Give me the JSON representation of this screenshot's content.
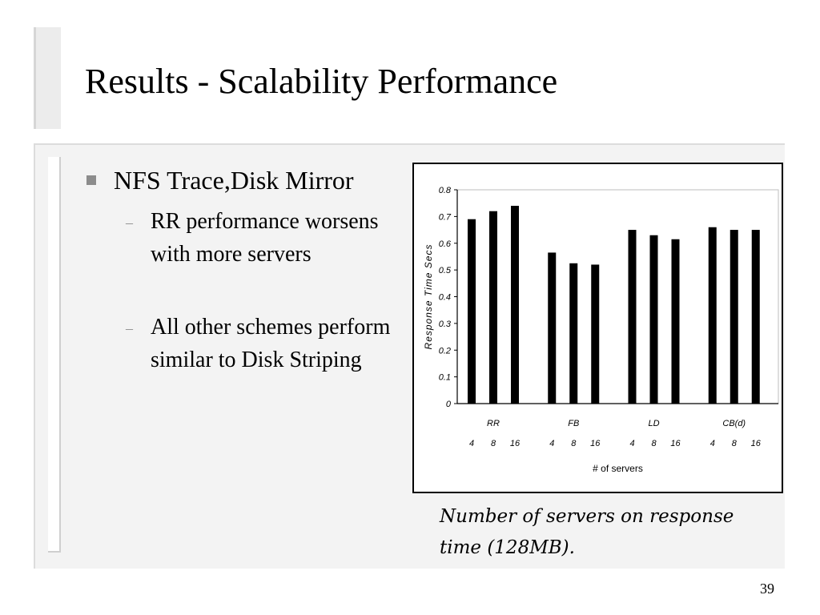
{
  "slide": {
    "title": "Results - Scalability Performance",
    "bullet": "NFS Trace,Disk Mirror",
    "sub_bullets": [
      {
        "dash": "–",
        "text": "RR performance worsens with more servers"
      },
      {
        "dash": "–",
        "text": "All other schemes perform similar to Disk Striping"
      }
    ],
    "caption": "Number of servers on response time (128MB).",
    "page_number": "39"
  },
  "chart_data": {
    "type": "bar",
    "ylabel": "Response Time Secs",
    "xlabel": "# of servers",
    "ylim": [
      0,
      0.8
    ],
    "yticks": [
      0,
      0.1,
      0.2,
      0.3,
      0.4,
      0.5,
      0.6,
      0.7,
      0.8
    ],
    "ytick_labels": [
      "0",
      "0.1",
      "0.2",
      "0.3",
      "0.4",
      "0.5",
      "0.6",
      "0.7",
      "0.8"
    ],
    "grid": false,
    "legend": "none",
    "bar_color": "#000000",
    "groups": [
      {
        "name": "RR",
        "categories": [
          "4",
          "8",
          "16"
        ],
        "values": [
          0.69,
          0.72,
          0.74
        ]
      },
      {
        "name": "FB",
        "categories": [
          "4",
          "8",
          "16"
        ],
        "values": [
          0.565,
          0.525,
          0.52
        ]
      },
      {
        "name": "LD",
        "categories": [
          "4",
          "8",
          "16"
        ],
        "values": [
          0.65,
          0.63,
          0.615
        ]
      },
      {
        "name": "CB(d)",
        "categories": [
          "4",
          "8",
          "16"
        ],
        "values": [
          0.66,
          0.65,
          0.65
        ]
      }
    ]
  }
}
